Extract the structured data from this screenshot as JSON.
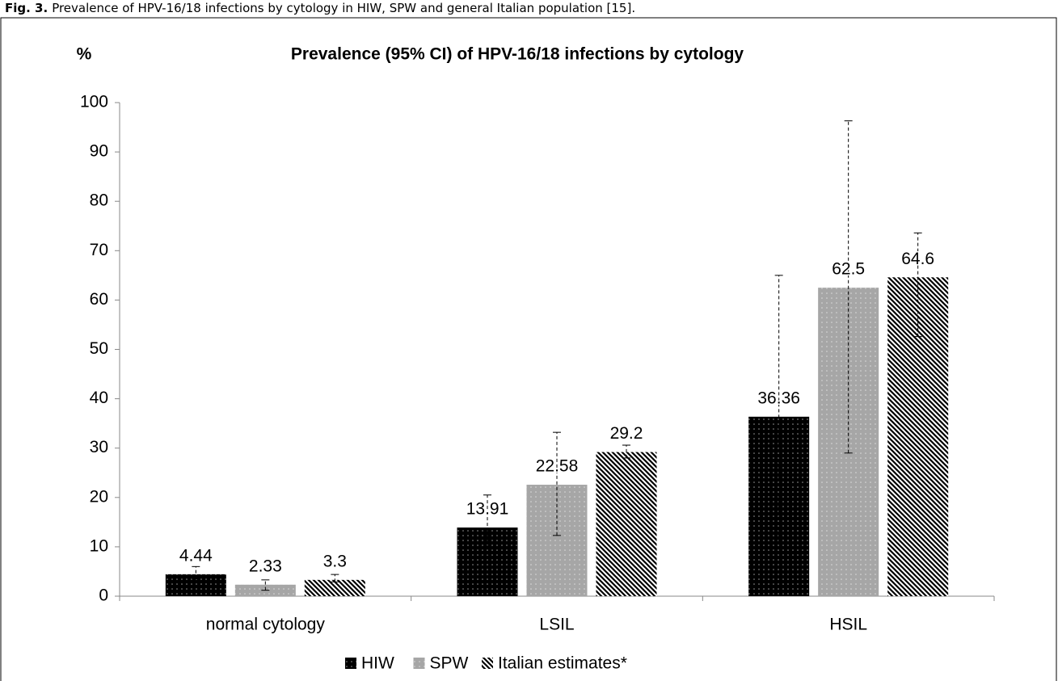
{
  "caption": {
    "label": "Fig. 3.",
    "text": "Prevalence of HPV-16/18 infections by cytology in HIW, SPW and general Italian population [15]."
  },
  "chart_data": {
    "type": "bar",
    "title": "Prevalence (95% CI) of HPV-16/18 infections by cytology",
    "y_label": "%",
    "categories": [
      "normal cytology",
      "LSIL",
      "HSIL"
    ],
    "series": [
      {
        "name": "HIW",
        "color": "#000000",
        "pattern": "dots",
        "values": [
          4.44,
          13.91,
          36.36
        ],
        "ci_low": [
          3.5,
          8.5,
          10.9
        ],
        "ci_high": [
          6,
          20.5,
          65
        ]
      },
      {
        "name": "SPW",
        "color": "#a6a6a6",
        "pattern": "dots",
        "values": [
          2.33,
          22.58,
          62.5
        ],
        "ci_low": [
          1.2,
          12.3,
          29
        ],
        "ci_high": [
          3.3,
          33.2,
          96.3
        ]
      },
      {
        "name": "Italian estimates*",
        "color": "#000000",
        "pattern": "hatch",
        "values": [
          3.3,
          29.2,
          64.6
        ],
        "ci_low": [
          2.9,
          28,
          52.6
        ],
        "ci_high": [
          4.4,
          30.6,
          73.6
        ]
      }
    ],
    "ylim": [
      0,
      100
    ],
    "yticks": [
      0,
      10,
      20,
      30,
      40,
      50,
      60,
      70,
      80,
      90,
      100
    ],
    "grid": false,
    "legend": "bottom"
  }
}
